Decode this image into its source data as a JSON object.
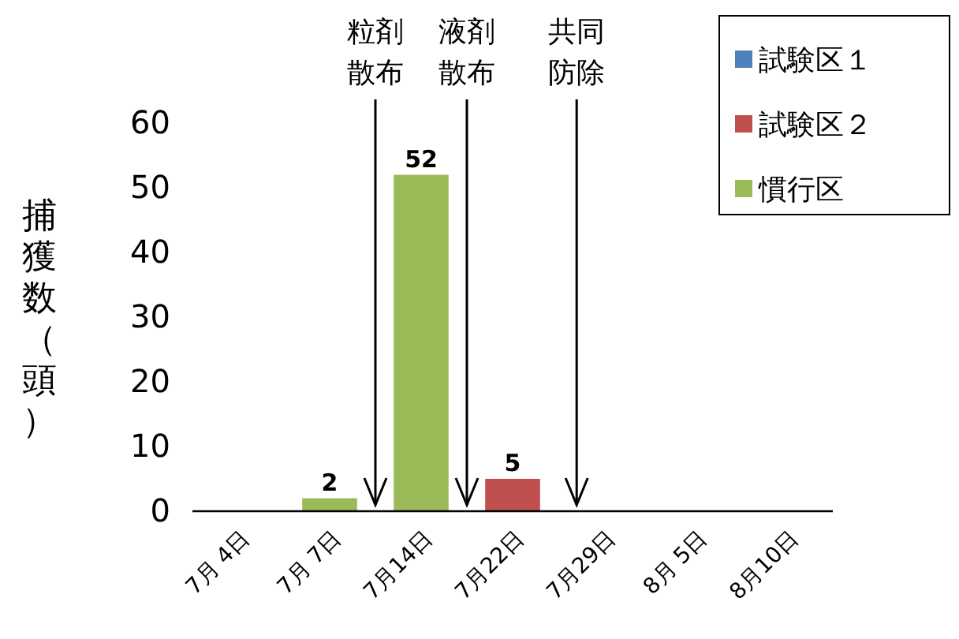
{
  "chart_data": {
    "type": "bar",
    "ylabel": "捕獲数（頭）",
    "categories": [
      "7月 4日",
      "7月 7日",
      "7月14日",
      "7月22日",
      "7月29日",
      "8月 5日",
      "8月10日"
    ],
    "series": [
      {
        "name": "試験区１",
        "color": "#4f81bd",
        "values": [
          0,
          0,
          0,
          0,
          0,
          0,
          0
        ]
      },
      {
        "name": "試験区２",
        "color": "#c0504d",
        "values": [
          0,
          0,
          0,
          5,
          0,
          0,
          0
        ],
        "value_labels": [
          null,
          null,
          null,
          "5",
          null,
          null,
          null
        ]
      },
      {
        "name": "慣行区",
        "color": "#9bbb59",
        "values": [
          0,
          2,
          52,
          0,
          0,
          0,
          0
        ],
        "value_labels": [
          null,
          "2",
          "52",
          null,
          null,
          null,
          null
        ]
      }
    ],
    "ylim": [
      0,
      60
    ],
    "yticks": [
      0,
      10,
      20,
      30,
      40,
      50,
      60
    ],
    "grid": false,
    "legend": "top right",
    "annotations": [
      "粒剤散布",
      "液剤散布",
      "共同防除"
    ]
  }
}
